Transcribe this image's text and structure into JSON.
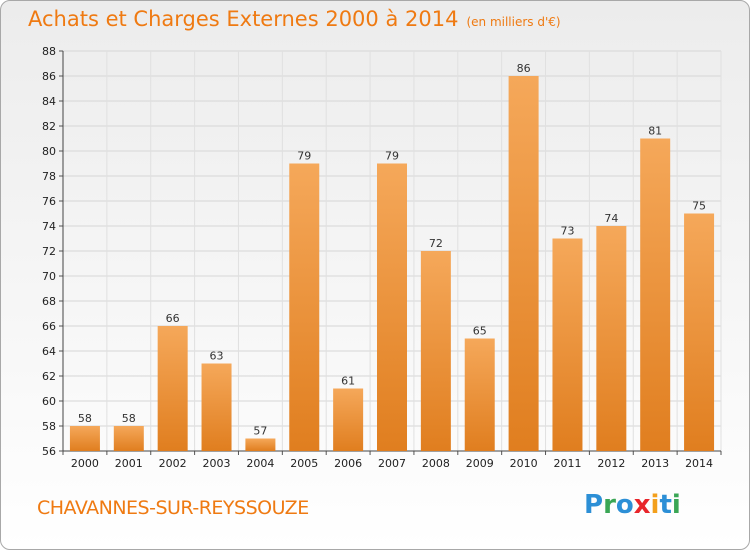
{
  "title": "Achats et Charges Externes 2000 à 2014",
  "unit": "(en milliers d'€)",
  "commune": "CHAVANNES-SUR-REYSSOUZE",
  "logo": {
    "text": "Proxiti",
    "letter_colors": [
      "#2c8fd6",
      "#3aa655",
      "#2c8fd6",
      "#e8252b",
      "#f3a01c",
      "#2c8fd6",
      "#3aa655"
    ]
  },
  "colors": {
    "title": "#ef7a12",
    "bar_light": "#f5a85a",
    "bar_dark": "#e07e1f"
  },
  "chart_data": {
    "type": "bar",
    "title": "Achats et Charges Externes 2000 à 2014",
    "subtitle": "(en milliers d'€)",
    "categories": [
      "2000",
      "2001",
      "2002",
      "2003",
      "2004",
      "2005",
      "2006",
      "2007",
      "2008",
      "2009",
      "2010",
      "2011",
      "2012",
      "2013",
      "2014"
    ],
    "values": [
      58,
      58,
      66,
      63,
      57,
      79,
      61,
      79,
      72,
      65,
      86,
      73,
      74,
      81,
      75
    ],
    "ylim": [
      56,
      88
    ],
    "yticks": [
      56,
      58,
      60,
      62,
      64,
      66,
      68,
      70,
      72,
      74,
      76,
      78,
      80,
      82,
      84,
      86,
      88
    ],
    "grid": true,
    "data_labels": true
  }
}
